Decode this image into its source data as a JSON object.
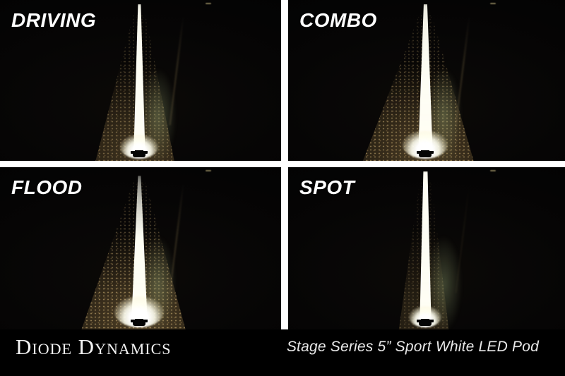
{
  "panels": [
    {
      "label": "DRIVING",
      "beam_pattern": "driving"
    },
    {
      "label": "COMBO",
      "beam_pattern": "combo"
    },
    {
      "label": "FLOOD",
      "beam_pattern": "flood"
    },
    {
      "label": "SPOT",
      "beam_pattern": "spot"
    }
  ],
  "footer": {
    "brand": "Diode Dynamics",
    "product": "Stage Series 5” Sport White LED Pod"
  },
  "colors": {
    "divider": "#ffffff",
    "background": "#000000",
    "beam": "#fffef4",
    "roadside": "#8a7347",
    "grass": "#96a876"
  }
}
